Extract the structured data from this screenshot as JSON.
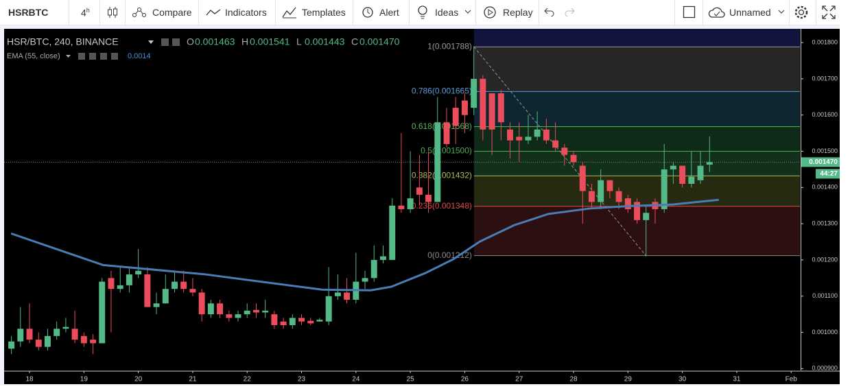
{
  "toolbar": {
    "symbol": "HSRBTC",
    "interval": "4",
    "interval_unit": "h",
    "buttons": [
      "Compare",
      "Indicators",
      "Templates",
      "Alert",
      "Ideas",
      "Replay"
    ],
    "layout_name": "Unnamed"
  },
  "chart_data": {
    "type": "candlestick",
    "title": "HSR/BTC, 240, BINANCE",
    "ohlc_header": [
      {
        "label": "O",
        "value": "0.001463"
      },
      {
        "label": "H",
        "value": "0.001541"
      },
      {
        "label": "L",
        "value": "0.001443"
      },
      {
        "label": "C",
        "value": "0.001470"
      }
    ],
    "up_color": "#53b987",
    "down_color": "#eb4d5c",
    "x": [
      17.667,
      17.833,
      18,
      18.167,
      18.333,
      18.5,
      18.667,
      18.833,
      19,
      19.167,
      19.333,
      19.5,
      19.667,
      19.833,
      20,
      20.167,
      20.333,
      20.5,
      20.667,
      20.833,
      21,
      21.167,
      21.333,
      21.5,
      21.667,
      21.833,
      22,
      22.167,
      22.333,
      22.5,
      22.667,
      22.833,
      23,
      23.167,
      23.333,
      23.5,
      23.667,
      23.833,
      24,
      24.167,
      24.333,
      24.5,
      24.667,
      24.833,
      25,
      25.167,
      25.333,
      25.5,
      25.667,
      25.833,
      26,
      26.167,
      26.333,
      26.5,
      26.667,
      26.833,
      27,
      27.167,
      27.333,
      27.5,
      27.667,
      27.833,
      28,
      28.167,
      28.333,
      28.5,
      28.667,
      28.833,
      29,
      29.167,
      29.333,
      29.5,
      29.667,
      29.833,
      30,
      30.167,
      30.333,
      30.5
    ],
    "open": [
      0.000955,
      0.000975,
      0.00101,
      0.00098,
      0.00096,
      0.00099,
      0.00101,
      0.00101,
      0.00099,
      0.00098,
      0.00097,
      0.00115,
      0.00112,
      0.00113,
      0.00116,
      0.00116,
      0.00107,
      0.00108,
      0.00112,
      0.00114,
      0.00112,
      0.00111,
      0.00105,
      0.00108,
      0.00105,
      0.00104,
      0.00105,
      0.001062,
      0.001055,
      0.00105,
      0.00103,
      0.00102,
      0.00104,
      0.001032,
      0.00103,
      0.00103,
      0.0011,
      0.00111,
      0.00109,
      0.00114,
      0.00115,
      0.0012,
      0.0012,
      0.00135,
      0.00134,
      0.0014,
      0.00138,
      0.00136,
      0.00158,
      0.00162,
      0.00164,
      0.00162,
      0.0017,
      0.00166,
      0.00166,
      0.00156,
      0.00154,
      0.00153,
      0.00154,
      0.00156,
      0.00153,
      0.00151,
      0.00149,
      0.00146,
      0.00139,
      0.00136,
      0.00142,
      0.00139,
      0.00137,
      0.00136,
      0.00131,
      0.00136,
      0.00134,
      0.00145,
      0.00146,
      0.00141,
      0.00142,
      0.001463
    ],
    "high": [
      0.00099,
      0.00107,
      0.00108,
      0.001,
      0.00101,
      0.00103,
      0.00104,
      0.00106,
      0.001,
      0.000995,
      0.00115,
      0.00117,
      0.00118,
      0.00118,
      0.00123,
      0.00118,
      0.00111,
      0.00116,
      0.00117,
      0.00117,
      0.00115,
      0.00112,
      0.00109,
      0.00109,
      0.00106,
      0.00106,
      0.00108,
      0.00108,
      0.00109,
      0.00106,
      0.00104,
      0.00105,
      0.00105,
      0.00104,
      0.00104,
      0.00118,
      0.00116,
      0.00115,
      0.00122,
      0.00117,
      0.00124,
      0.00124,
      0.00137,
      0.00155,
      0.0015,
      0.00149,
      0.0015,
      0.00165,
      0.00162,
      0.00165,
      0.00166,
      0.00179,
      0.00171,
      0.00166,
      0.00167,
      0.00158,
      0.00158,
      0.0016,
      0.00161,
      0.00159,
      0.00158,
      0.00152,
      0.0015,
      0.00147,
      0.00141,
      0.00145,
      0.00142,
      0.0014,
      0.00138,
      0.00137,
      0.00135,
      0.00137,
      0.00152,
      0.00147,
      0.00146,
      0.0015,
      0.0015,
      0.001541
    ],
    "low": [
      0.00094,
      0.00096,
      0.00097,
      0.00095,
      0.00095,
      0.00098,
      0.001,
      0.00097,
      0.00096,
      0.00094,
      0.00097,
      0.001,
      0.00111,
      0.00111,
      0.00115,
      0.00107,
      0.00105,
      0.00108,
      0.00111,
      0.00111,
      0.0011,
      0.00103,
      0.00104,
      0.00104,
      0.00103,
      0.00103,
      0.00104,
      0.00104,
      0.00104,
      0.00101,
      0.00101,
      0.00101,
      0.00102,
      0.00102,
      0.00103,
      0.00102,
      0.00109,
      0.00108,
      0.00108,
      0.00112,
      0.00114,
      0.00119,
      0.0012,
      0.00133,
      0.00133,
      0.00135,
      0.00133,
      0.00136,
      0.00151,
      0.00152,
      0.00155,
      0.0016,
      0.00153,
      0.00149,
      0.00153,
      0.00148,
      0.00147,
      0.00152,
      0.00153,
      0.00152,
      0.0015,
      0.00146,
      0.00146,
      0.0013,
      0.00134,
      0.00134,
      0.00137,
      0.00134,
      0.00133,
      0.0013,
      0.00121,
      0.0013,
      0.00133,
      0.00141,
      0.0014,
      0.0014,
      0.00141,
      0.001443
    ],
    "close": [
      0.000975,
      0.00101,
      0.00098,
      0.00096,
      0.00099,
      0.00101,
      0.001015,
      0.00098,
      0.00097,
      0.00097,
      0.00114,
      0.00112,
      0.00113,
      0.00116,
      0.00117,
      0.00107,
      0.00108,
      0.00112,
      0.00114,
      0.00112,
      0.00111,
      0.00105,
      0.00108,
      0.00105,
      0.00104,
      0.00105,
      0.00106,
      0.001055,
      0.00106,
      0.00102,
      0.00102,
      0.00104,
      0.00103,
      0.001025,
      0.001035,
      0.0011,
      0.00111,
      0.00109,
      0.00114,
      0.00115,
      0.0012,
      0.00121,
      0.00135,
      0.00134,
      0.00137,
      0.00138,
      0.00136,
      0.00158,
      0.00152,
      0.00157,
      0.0016,
      0.0017,
      0.00156,
      0.00156,
      0.00158,
      0.00153,
      0.00153,
      0.00154,
      0.00156,
      0.00153,
      0.00151,
      0.00149,
      0.00147,
      0.00139,
      0.00136,
      0.00142,
      0.00139,
      0.00136,
      0.00134,
      0.00131,
      0.00133,
      0.00134,
      0.00145,
      0.00146,
      0.00141,
      0.00143,
      0.00146,
      0.00147
    ],
    "ema": {
      "name": "EMA (55, close)",
      "last_value": "0.0014",
      "color": "#4a7db5",
      "x": [
        17.66,
        19.35,
        21.24,
        22.25,
        23.38,
        24.27,
        24.65,
        25.28,
        25.79,
        26.28,
        26.91,
        27.54,
        28.3,
        29.06,
        29.82,
        30.67
      ],
      "values": [
        0.001273,
        0.001186,
        0.00116,
        0.00114,
        0.001118,
        0.001116,
        0.001126,
        0.001164,
        0.001202,
        0.001251,
        0.001296,
        0.001327,
        0.001342,
        0.001349,
        0.001353,
        0.001366
      ]
    },
    "fib": {
      "from_x": 26.17,
      "to_x": 29.33,
      "levels": [
        {
          "label": "1(0.001788)",
          "value": 0.001788,
          "color": "#9a9a9a",
          "fill": "#262626"
        },
        {
          "label": "0.786(0.001665)",
          "value": 0.001665,
          "color": "#5b9bd5",
          "fill": "#0e2630"
        },
        {
          "label": "0.618(0.001568)",
          "value": 0.001568,
          "color": "#5cb85c",
          "fill": "#0f2a18"
        },
        {
          "label": "0.5(0.001500)",
          "value": 0.0015,
          "color": "#4caf50",
          "fill": "#12301a"
        },
        {
          "label": "0.382(0.001432)",
          "value": 0.001432,
          "color": "#b8b85a",
          "fill": "#262a10"
        },
        {
          "label": "0.236(0.001348)",
          "value": 0.001348,
          "color": "#e04848",
          "fill": "#2c0f10"
        },
        {
          "label": "0(0.001212)",
          "value": 0.001212,
          "color": "#8a8a8a"
        }
      ]
    },
    "price_tag": {
      "value": 0.00147,
      "label": "0.001470"
    },
    "countdown": "44:27",
    "xlim": [
      17.533,
      32.161
    ],
    "ylim": [
      0.000895,
      0.001838
    ],
    "xticks": [
      18,
      19,
      20,
      21,
      22,
      23,
      24,
      25,
      26,
      27,
      28,
      29,
      30,
      31,
      {
        "value": 32,
        "label": "Feb"
      }
    ],
    "yticks": [
      {
        "value": 0.0018,
        "label": "0.001800"
      },
      {
        "value": 0.0017,
        "label": "0.001700"
      },
      {
        "value": 0.0016,
        "label": "0.001600"
      },
      {
        "value": 0.0015,
        "label": "0.001500"
      },
      {
        "value": 0.0014,
        "label": "0.001400"
      },
      {
        "value": 0.0013,
        "label": "0.001300"
      },
      {
        "value": 0.0012,
        "label": "0.001200"
      },
      {
        "value": 0.0011,
        "label": "0.001100"
      },
      {
        "value": 0.001,
        "label": "0.001000"
      },
      {
        "value": 0.0009,
        "label": "0.000900"
      }
    ]
  }
}
